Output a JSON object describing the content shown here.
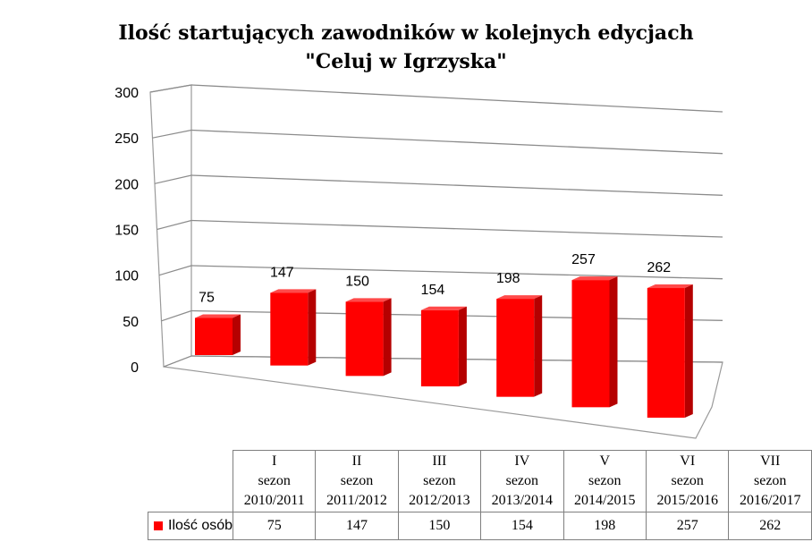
{
  "chart_data": {
    "type": "bar",
    "title": [
      "Ilość startujących zawodników w kolejnych edycjach",
      "\"Celuj w Igrzyska\""
    ],
    "categories": [
      [
        "I",
        "sezon",
        "2010/2011"
      ],
      [
        "II",
        "sezon",
        "2011/2012"
      ],
      [
        "III",
        "sezon",
        "2012/2013"
      ],
      [
        "IV",
        "sezon",
        "2013/2014"
      ],
      [
        "V",
        "sezon",
        "2014/2015"
      ],
      [
        "VI",
        "sezon",
        "2015/2016"
      ],
      [
        "VII",
        "sezon",
        "2016/2017"
      ]
    ],
    "series": [
      {
        "name": "Ilość osób",
        "values": [
          75,
          147,
          150,
          154,
          198,
          257,
          262
        ],
        "color": "#ff0000"
      }
    ],
    "yticks": [
      0,
      50,
      100,
      150,
      200,
      250,
      300
    ],
    "ylim": [
      0,
      300
    ],
    "grid": true,
    "style": "3d-clustered-column",
    "data_table": true
  }
}
